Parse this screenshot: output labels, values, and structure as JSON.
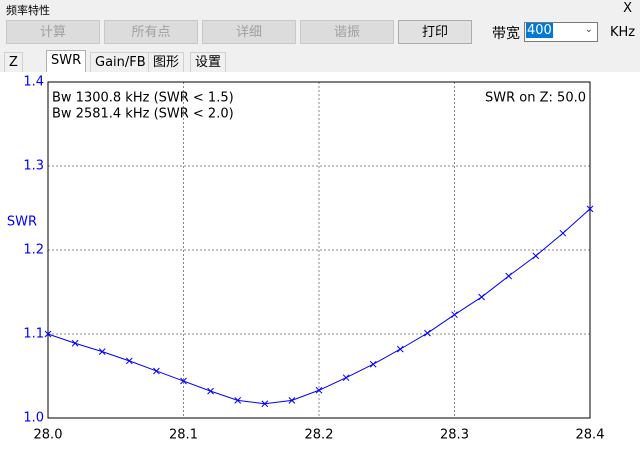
{
  "window": {
    "title": "频率特性",
    "close": "X"
  },
  "toolbar": {
    "buttons": [
      {
        "label": "计算",
        "enabled": false
      },
      {
        "label": "所有点",
        "enabled": false
      },
      {
        "label": "详细",
        "enabled": false
      },
      {
        "label": "谐振",
        "enabled": false
      },
      {
        "label": "打印",
        "enabled": true
      }
    ],
    "bandwidth_label": "带宽",
    "bandwidth_value": "400",
    "unit": "KHz"
  },
  "tabs": {
    "items": [
      "Z",
      "SWR",
      "Gain/FB",
      "图形",
      "设置"
    ],
    "active": 1
  },
  "chart_data": {
    "type": "line",
    "ylabel": "SWR",
    "annotations": [
      "Bw 1300.8 kHz (SWR < 1.5)",
      "Bw 2581.4 kHz (SWR < 2.0)",
      "SWR on Z: 50.0"
    ],
    "x": [
      28.0,
      28.02,
      28.04,
      28.06,
      28.08,
      28.1,
      28.12,
      28.14,
      28.16,
      28.18,
      28.2,
      28.22,
      28.24,
      28.26,
      28.28,
      28.3,
      28.32,
      28.34,
      28.36,
      28.38,
      28.4
    ],
    "values": [
      1.1,
      1.089,
      1.079,
      1.068,
      1.056,
      1.044,
      1.032,
      1.021,
      1.017,
      1.021,
      1.033,
      1.048,
      1.064,
      1.082,
      1.101,
      1.123,
      1.144,
      1.169,
      1.193,
      1.22,
      1.249
    ],
    "color": "#0000ff",
    "marker": "x",
    "xlim": [
      28.0,
      28.4
    ],
    "ylim": [
      1.0,
      1.4
    ],
    "xticks": [
      {
        "value": 28,
        "label": "28.0"
      },
      28.1,
      28.2,
      28.3,
      28.4
    ],
    "yticks": [
      {
        "value": 1,
        "label": "1.0"
      },
      1.1,
      1.2,
      1.3,
      1.4
    ],
    "grid": true
  }
}
